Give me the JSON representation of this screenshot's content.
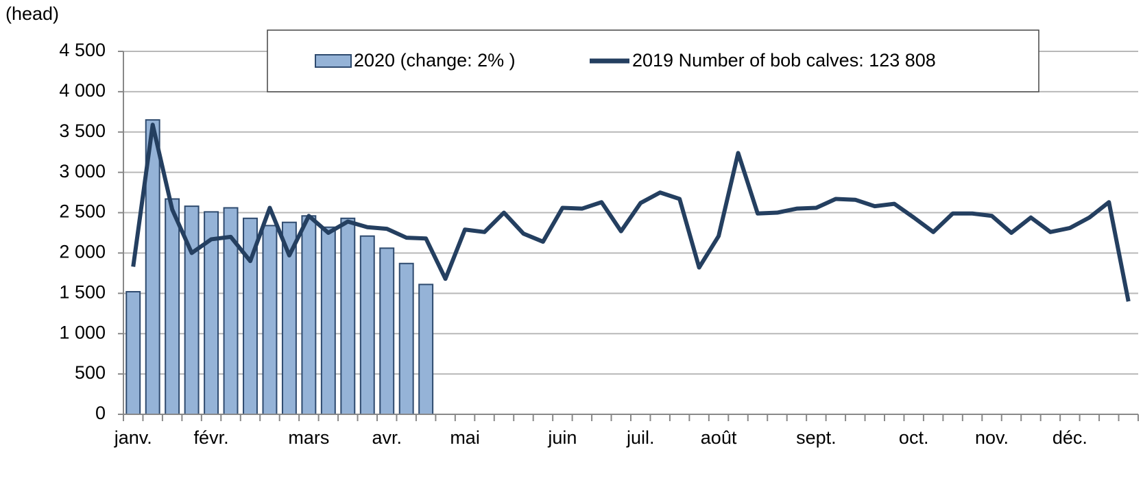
{
  "chart_data": {
    "type": "bar_line",
    "y_label": "(head)",
    "categories": [
      "janv.",
      null,
      null,
      null,
      "févr.",
      null,
      null,
      null,
      null,
      "mars",
      null,
      null,
      null,
      "avr.",
      null,
      null,
      null,
      "mai",
      null,
      null,
      null,
      null,
      "juin",
      null,
      null,
      null,
      "juil.",
      null,
      null,
      null,
      "août",
      null,
      null,
      null,
      null,
      "sept.",
      null,
      null,
      null,
      null,
      "oct.",
      null,
      null,
      null,
      "nov.",
      null,
      null,
      null,
      "déc.",
      null,
      null,
      null
    ],
    "series": [
      {
        "name": "2020 (change: 2% )",
        "kind": "bar",
        "color": "#95b3d7",
        "values": [
          1520,
          3650,
          2670,
          2580,
          2510,
          2560,
          2430,
          2340,
          2380,
          2460,
          2320,
          2430,
          2210,
          2060,
          1870,
          1610,
          null,
          null,
          null,
          null,
          null,
          null,
          null,
          null,
          null,
          null,
          null,
          null,
          null,
          null,
          null,
          null,
          null,
          null,
          null,
          null,
          null,
          null,
          null,
          null,
          null,
          null,
          null,
          null,
          null,
          null,
          null,
          null,
          null,
          null,
          null,
          null
        ]
      },
      {
        "name": "2019 Number of bob calves: 123 808",
        "kind": "line",
        "color": "#243f60",
        "values": [
          1830,
          3590,
          2540,
          2000,
          2170,
          2200,
          1900,
          2560,
          1970,
          2460,
          2250,
          2390,
          2320,
          2300,
          2190,
          2180,
          1680,
          2290,
          2260,
          2500,
          2240,
          2140,
          2560,
          2550,
          2630,
          2270,
          2620,
          2750,
          2670,
          1820,
          2210,
          3240,
          2490,
          2500,
          2550,
          2560,
          2670,
          2660,
          2580,
          2610,
          2440,
          2260,
          2490,
          2490,
          2460,
          2250,
          2440,
          2260,
          2310,
          2440,
          2630,
          1400
        ]
      }
    ],
    "ylim": [
      0,
      4500
    ],
    "yticks": [
      0,
      500,
      {
        "value": 1000,
        "label": "1 000"
      },
      {
        "value": 1500,
        "label": "1 500"
      },
      {
        "value": 2000,
        "label": "2 000"
      },
      {
        "value": 2500,
        "label": "2 500"
      },
      {
        "value": 3000,
        "label": "3 000"
      },
      {
        "value": 3500,
        "label": "3 500"
      },
      {
        "value": 4000,
        "label": "4 000"
      },
      {
        "value": 4500,
        "label": "4 500"
      }
    ],
    "grid": true,
    "legend": "top"
  }
}
